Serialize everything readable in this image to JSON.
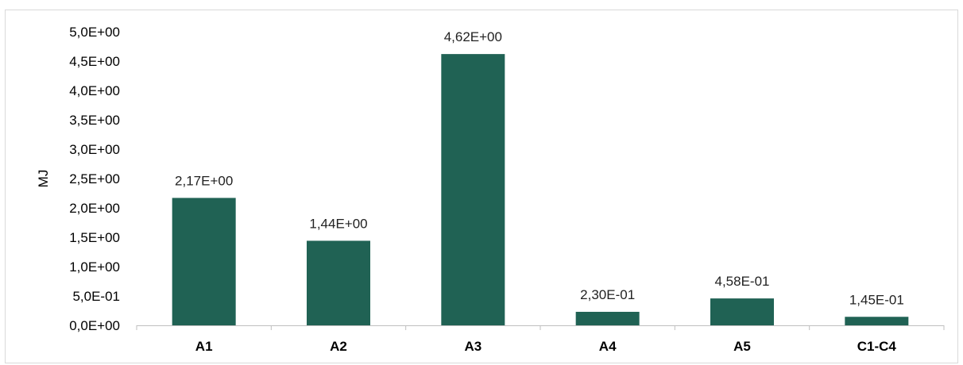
{
  "chart_data": {
    "type": "bar",
    "categories": [
      "A1",
      "A2",
      "A3",
      "A4",
      "A5",
      "C1-C4"
    ],
    "values": [
      2.17,
      1.44,
      4.62,
      0.23,
      0.458,
      0.145
    ],
    "data_labels": [
      "2,17E+00",
      "1,44E+00",
      "4,62E+00",
      "2,30E-01",
      "4,58E-01",
      "1,45E-01"
    ],
    "ylabel": "MJ",
    "xlabel": "",
    "ylim": [
      0,
      5
    ],
    "yticks": [
      0,
      0.5,
      1.0,
      1.5,
      2.0,
      2.5,
      3.0,
      3.5,
      4.0,
      4.5,
      5.0
    ],
    "ytick_labels": [
      "0,0E+00",
      "5,0E-01",
      "1,0E+00",
      "1,5E+00",
      "2,0E+00",
      "2,5E+00",
      "3,0E+00",
      "3,5E+00",
      "4,0E+00",
      "4,5E+00",
      "5,0E+00"
    ],
    "bar_color": "#206254",
    "axis_color": "#bfbfbf",
    "grid": false,
    "legend": "none"
  }
}
